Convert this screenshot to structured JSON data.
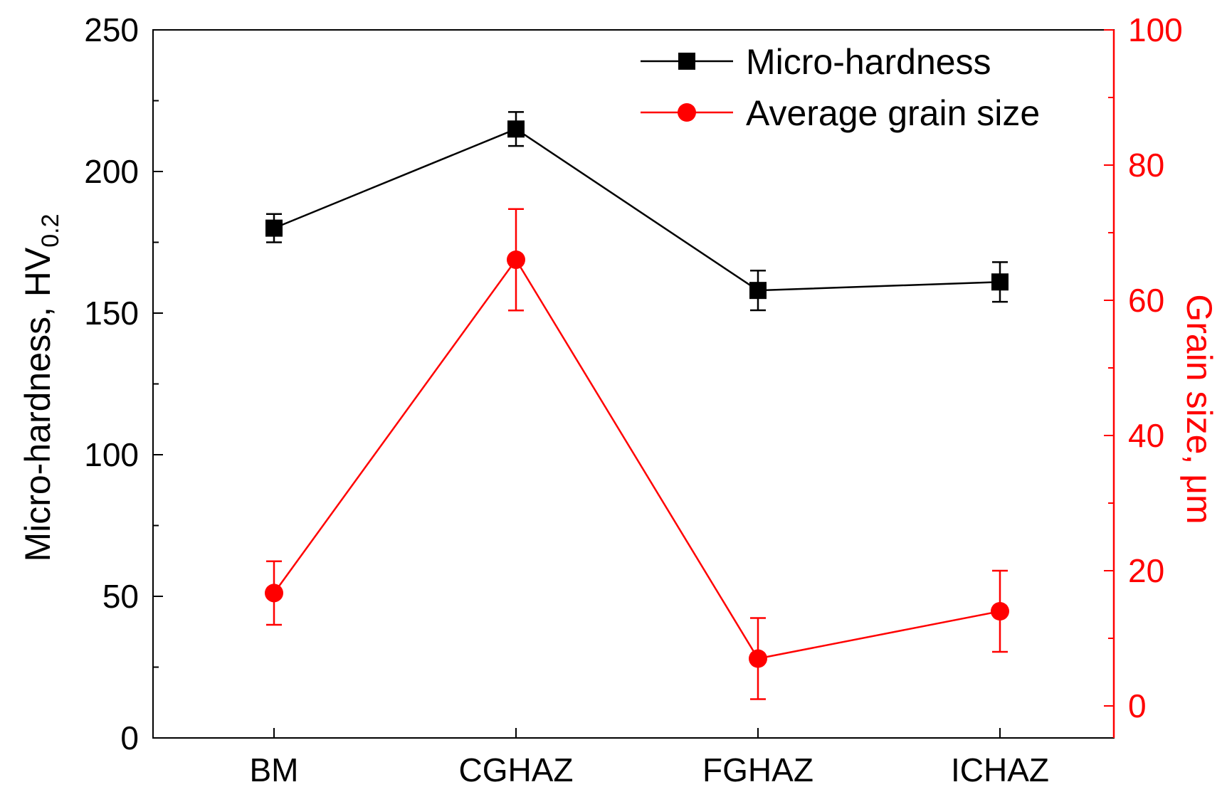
{
  "chart_data": {
    "type": "line",
    "categories": [
      "BM",
      "CGHAZ",
      "FGHAZ",
      "ICHAZ"
    ],
    "y_left": {
      "label_main": "Micro-hardness, HV",
      "label_sub": "0.2",
      "range": [
        0,
        250
      ],
      "ticks": [
        "0",
        "50",
        "100",
        "150",
        "200",
        "250"
      ],
      "minor_step": 25,
      "color": "#000000"
    },
    "y_right": {
      "label": "Grain size, μm",
      "range": [
        -5,
        100
      ],
      "ticks": [
        "0",
        "20",
        "40",
        "60",
        "80",
        "100"
      ],
      "minor_step": 10,
      "color": "#ff0000"
    },
    "series": [
      {
        "name": "Micro-hardness",
        "axis": "left",
        "marker": "square",
        "color": "#000000",
        "values": [
          180,
          215,
          158,
          161
        ],
        "errors": [
          5,
          6,
          7,
          7
        ]
      },
      {
        "name": "Average grain size",
        "axis": "right",
        "marker": "circle",
        "color": "#ff0000",
        "values": [
          16.7,
          66,
          7,
          14
        ],
        "errors": [
          4.7,
          7.5,
          6,
          6
        ]
      }
    ],
    "legend": {
      "position": "top-right",
      "entries": [
        "Micro-hardness",
        "Average grain size"
      ]
    }
  }
}
